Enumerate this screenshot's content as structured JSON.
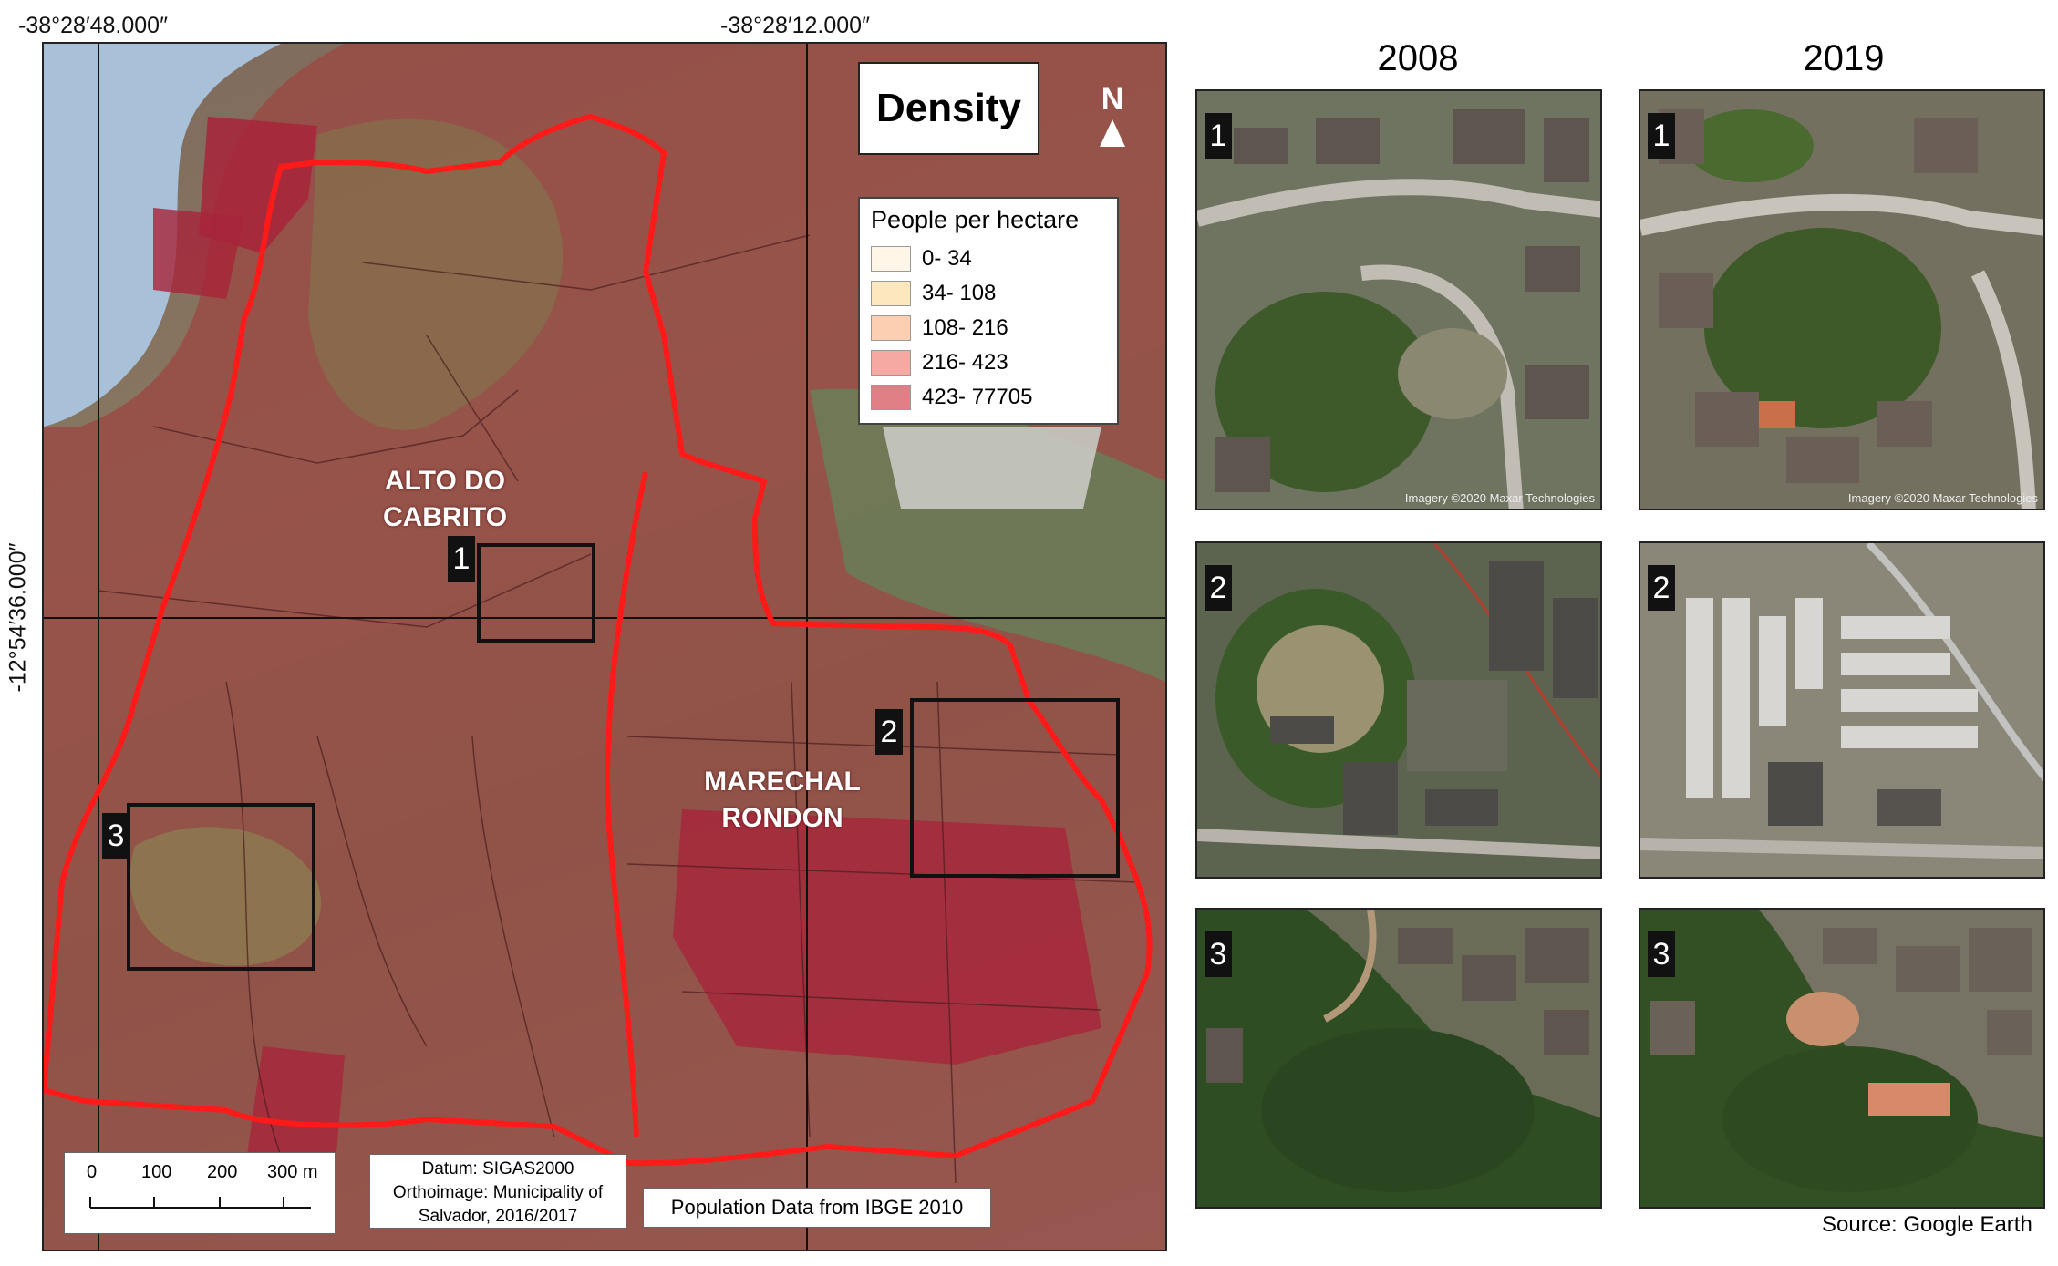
{
  "coords": {
    "lon_left": "-38°28′48.000″",
    "lon_right": "-38°28′12.000″",
    "lat": "-12°54′36.000″"
  },
  "map": {
    "title": "Density",
    "north": "N",
    "legend": {
      "title": "People per hectare",
      "classes": [
        {
          "label": "0- 34",
          "color": "#fff6e8"
        },
        {
          "label": "34- 108",
          "color": "#fde7bf"
        },
        {
          "label": "108- 216",
          "color": "#fbcfb0"
        },
        {
          "label": "216- 423",
          "color": "#f5a9a2"
        },
        {
          "label": "423- 77705",
          "color": "#e07f85"
        }
      ]
    },
    "neighborhoods": {
      "alto": "ALTO DO CABRITO",
      "marechal": "MARECHAL RONDON"
    },
    "boxes": [
      "1",
      "2",
      "3"
    ],
    "scale": {
      "labels": [
        "0",
        "100",
        "200",
        "300 m"
      ]
    },
    "datum": [
      "Datum: SIGAS2000",
      "Orthoimage: Municipality of",
      "Salvador, 2016/2017"
    ],
    "population_source": "Population Data from IBGE 2010",
    "colors": {
      "boundary": "#ff1a1a",
      "water": "#a8c0d8",
      "dense": "#a8243a",
      "medium": "#b84a4a"
    }
  },
  "comparison": {
    "years": [
      "2008",
      "2019"
    ],
    "rows": [
      "1",
      "2",
      "3"
    ],
    "attribution": "Imagery ©2020 Maxar Technologies",
    "source": "Source: Google Earth"
  }
}
